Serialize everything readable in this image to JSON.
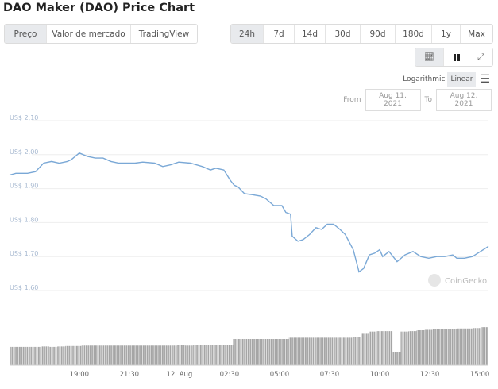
{
  "title": "DAO Maker (DAO) Price Chart",
  "view_tabs": [
    {
      "label": "Preço",
      "active": true
    },
    {
      "label": "Valor de mercado",
      "active": false
    },
    {
      "label": "TradingView",
      "active": false
    }
  ],
  "ranges": [
    {
      "label": "24h",
      "active": true
    },
    {
      "label": "7d"
    },
    {
      "label": "14d"
    },
    {
      "label": "30d"
    },
    {
      "label": "90d"
    },
    {
      "label": "180d"
    },
    {
      "label": "1y"
    },
    {
      "label": "Max"
    }
  ],
  "chart_type_buttons": [
    {
      "icon": "line-chart-icon",
      "active": true
    },
    {
      "icon": "candlestick-icon"
    },
    {
      "icon": "fullscreen-icon"
    }
  ],
  "scale": {
    "logarithmic": "Logarithmic",
    "linear": "Linear",
    "selected": "Linear",
    "menu_icon": "hamburger-menu-icon"
  },
  "date_range": {
    "from_label": "From",
    "from": "Aug 11, 2021",
    "to_label": "To",
    "to": "Aug 12, 2021"
  },
  "watermark": "CoinGecko",
  "colors": {
    "line": "#7aa8d6",
    "volume": "#999999",
    "grid": "#eeeeee"
  },
  "chart_data": {
    "type": "line",
    "ylim": [
      1.6,
      2.1
    ],
    "y_ticks": [
      "US$ 2,10",
      "US$ 2,00",
      "US$ 1,90",
      "US$ 1,80",
      "US$ 1,70",
      "US$ 1,60"
    ],
    "y_tick_values": [
      2.1,
      2.0,
      1.9,
      1.8,
      1.7,
      1.6
    ],
    "x_ticks": [
      {
        "label": "19:00",
        "t": "2021-08-11T19:00"
      },
      {
        "label": "21:30",
        "t": "2021-08-11T21:30"
      },
      {
        "label": "12. Aug",
        "t": "2021-08-12T00:00"
      },
      {
        "label": "02:30",
        "t": "2021-08-12T02:30"
      },
      {
        "label": "05:00",
        "t": "2021-08-12T05:00"
      },
      {
        "label": "07:30",
        "t": "2021-08-12T07:30"
      },
      {
        "label": "10:00",
        "t": "2021-08-12T10:00"
      },
      {
        "label": "12:30",
        "t": "2021-08-12T12:30"
      },
      {
        "label": "15:00",
        "t": "2021-08-12T15:00"
      }
    ],
    "grid": true,
    "series": [
      {
        "points": [
          [
            "2021-08-11T15:31",
            1.94
          ],
          [
            "2021-08-11T15:50",
            1.945
          ],
          [
            "2021-08-11T16:25",
            1.945
          ],
          [
            "2021-08-11T16:49",
            1.95
          ],
          [
            "2021-08-11T17:13",
            1.975
          ],
          [
            "2021-08-11T17:37",
            1.98
          ],
          [
            "2021-08-11T18:00",
            1.975
          ],
          [
            "2021-08-11T18:24",
            1.98
          ],
          [
            "2021-08-11T18:36",
            1.985
          ],
          [
            "2021-08-11T19:00",
            2.005
          ],
          [
            "2021-08-11T19:24",
            1.995
          ],
          [
            "2021-08-11T19:48",
            1.99
          ],
          [
            "2021-08-11T20:11",
            1.99
          ],
          [
            "2021-08-11T20:35",
            1.98
          ],
          [
            "2021-08-11T20:59",
            1.975
          ],
          [
            "2021-08-11T21:23",
            1.975
          ],
          [
            "2021-08-11T21:47",
            1.975
          ],
          [
            "2021-08-11T22:10",
            1.978
          ],
          [
            "2021-08-11T22:46",
            1.975
          ],
          [
            "2021-08-11T23:10",
            1.965
          ],
          [
            "2021-08-11T23:34",
            1.97
          ],
          [
            "2021-08-11T23:58",
            1.978
          ],
          [
            "2021-08-12T00:33",
            1.975
          ],
          [
            "2021-08-12T01:09",
            1.965
          ],
          [
            "2021-08-12T01:33",
            1.955
          ],
          [
            "2021-08-12T01:49",
            1.96
          ],
          [
            "2021-08-12T02:13",
            1.955
          ],
          [
            "2021-08-12T02:32",
            1.925
          ],
          [
            "2021-08-12T02:44",
            1.91
          ],
          [
            "2021-08-12T02:56",
            1.905
          ],
          [
            "2021-08-12T03:15",
            1.885
          ],
          [
            "2021-08-12T03:39",
            1.882
          ],
          [
            "2021-08-12T04:03",
            1.878
          ],
          [
            "2021-08-12T04:19",
            1.87
          ],
          [
            "2021-08-12T04:43",
            1.85
          ],
          [
            "2021-08-12T05:07",
            1.85
          ],
          [
            "2021-08-12T05:19",
            1.83
          ],
          [
            "2021-08-12T05:33",
            1.825
          ],
          [
            "2021-08-12T05:38",
            1.76
          ],
          [
            "2021-08-12T05:55",
            1.745
          ],
          [
            "2021-08-12T06:11",
            1.75
          ],
          [
            "2021-08-12T06:30",
            1.765
          ],
          [
            "2021-08-12T06:49",
            1.785
          ],
          [
            "2021-08-12T07:06",
            1.78
          ],
          [
            "2021-08-12T07:23",
            1.795
          ],
          [
            "2021-08-12T07:42",
            1.795
          ],
          [
            "2021-08-12T08:01",
            1.78
          ],
          [
            "2021-08-12T08:17",
            1.765
          ],
          [
            "2021-08-12T08:41",
            1.72
          ],
          [
            "2021-08-12T08:58",
            1.655
          ],
          [
            "2021-08-12T09:12",
            1.665
          ],
          [
            "2021-08-12T09:29",
            1.705
          ],
          [
            "2021-08-12T09:45",
            1.71
          ],
          [
            "2021-08-12T10:00",
            1.72
          ],
          [
            "2021-08-12T10:09",
            1.7
          ],
          [
            "2021-08-12T10:28",
            1.715
          ],
          [
            "2021-08-12T10:52",
            1.685
          ],
          [
            "2021-08-12T11:16",
            1.705
          ],
          [
            "2021-08-12T11:40",
            1.715
          ],
          [
            "2021-08-12T12:03",
            1.7
          ],
          [
            "2021-08-12T12:27",
            1.695
          ],
          [
            "2021-08-12T12:51",
            1.7
          ],
          [
            "2021-08-12T13:15",
            1.7
          ],
          [
            "2021-08-12T13:39",
            1.705
          ],
          [
            "2021-08-12T13:51",
            1.695
          ],
          [
            "2021-08-12T14:14",
            1.695
          ],
          [
            "2021-08-12T14:38",
            1.7
          ],
          [
            "2021-08-12T15:02",
            1.715
          ],
          [
            "2021-08-12T15:26",
            1.73
          ]
        ]
      }
    ],
    "volume_relative": [
      0.42,
      0.42,
      0.42,
      0.42,
      0.43,
      0.42,
      0.43,
      0.44,
      0.44,
      0.45,
      0.45,
      0.45,
      0.45,
      0.45,
      0.45,
      0.45,
      0.45,
      0.45,
      0.45,
      0.45,
      0.45,
      0.46,
      0.45,
      0.46,
      0.46,
      0.46,
      0.46,
      0.46,
      0.6,
      0.6,
      0.6,
      0.6,
      0.6,
      0.6,
      0.6,
      0.63,
      0.63,
      0.63,
      0.63,
      0.63,
      0.63,
      0.63,
      0.63,
      0.65,
      0.72,
      0.77,
      0.78,
      0.78,
      0.3,
      0.77,
      0.78,
      0.8,
      0.81,
      0.82,
      0.83,
      0.83,
      0.84,
      0.84,
      0.85,
      0.87
    ]
  }
}
